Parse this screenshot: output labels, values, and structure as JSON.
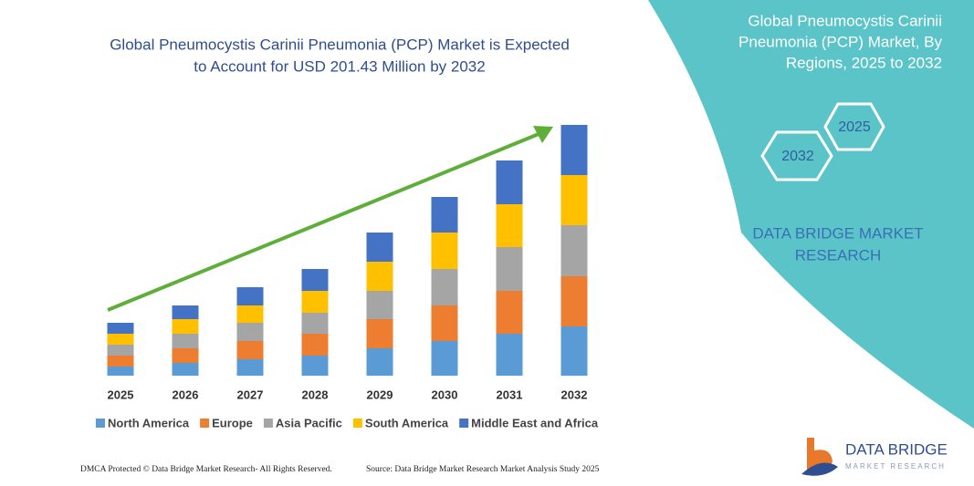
{
  "chart_data": {
    "type": "bar",
    "stacked": true,
    "title": [
      "Global Pneumocystis Carinii Pneumonia (PCP) Market is Expected",
      "to Account for USD 201.43 Million by 2032"
    ],
    "categories": [
      "2025",
      "2026",
      "2027",
      "2028",
      "2029",
      "2030",
      "2031",
      "2032"
    ],
    "series": [
      {
        "name": "North America",
        "color": "#5b9bd5",
        "values": [
          10,
          14,
          18,
          22,
          30,
          38,
          46,
          54
        ]
      },
      {
        "name": "Europe",
        "color": "#ed7d31",
        "values": [
          12,
          16,
          20,
          24,
          32,
          39,
          47,
          55
        ]
      },
      {
        "name": "Asia Pacific",
        "color": "#a5a5a5",
        "values": [
          12,
          16,
          20,
          23,
          31,
          40,
          48,
          56
        ]
      },
      {
        "name": "South America",
        "color": "#ffc000",
        "values": [
          12,
          16,
          19,
          24,
          32,
          40,
          47,
          55
        ]
      },
      {
        "name": "Middle East and Africa",
        "color": "#4472c4",
        "values": [
          12,
          15,
          20,
          24,
          32,
          39,
          48,
          55
        ]
      }
    ]
  },
  "panel": {
    "title": [
      "Global Pneumocystis Carinii",
      "Pneumonia (PCP) Market, By",
      "Regions, 2025 to 2032"
    ],
    "hex_labels": [
      "2025",
      "2032"
    ],
    "brand": [
      "DATA BRIDGE MARKET",
      "RESEARCH"
    ]
  },
  "logo": {
    "name": "DATA BRIDGE",
    "tagline": "MARKET RESEARCH"
  },
  "footer": {
    "left": "DMCA Protected © Data Bridge Market Research- All Rights Reserved.",
    "right": "Source: Data Bridge Market Research Market Analysis Study 2025"
  }
}
